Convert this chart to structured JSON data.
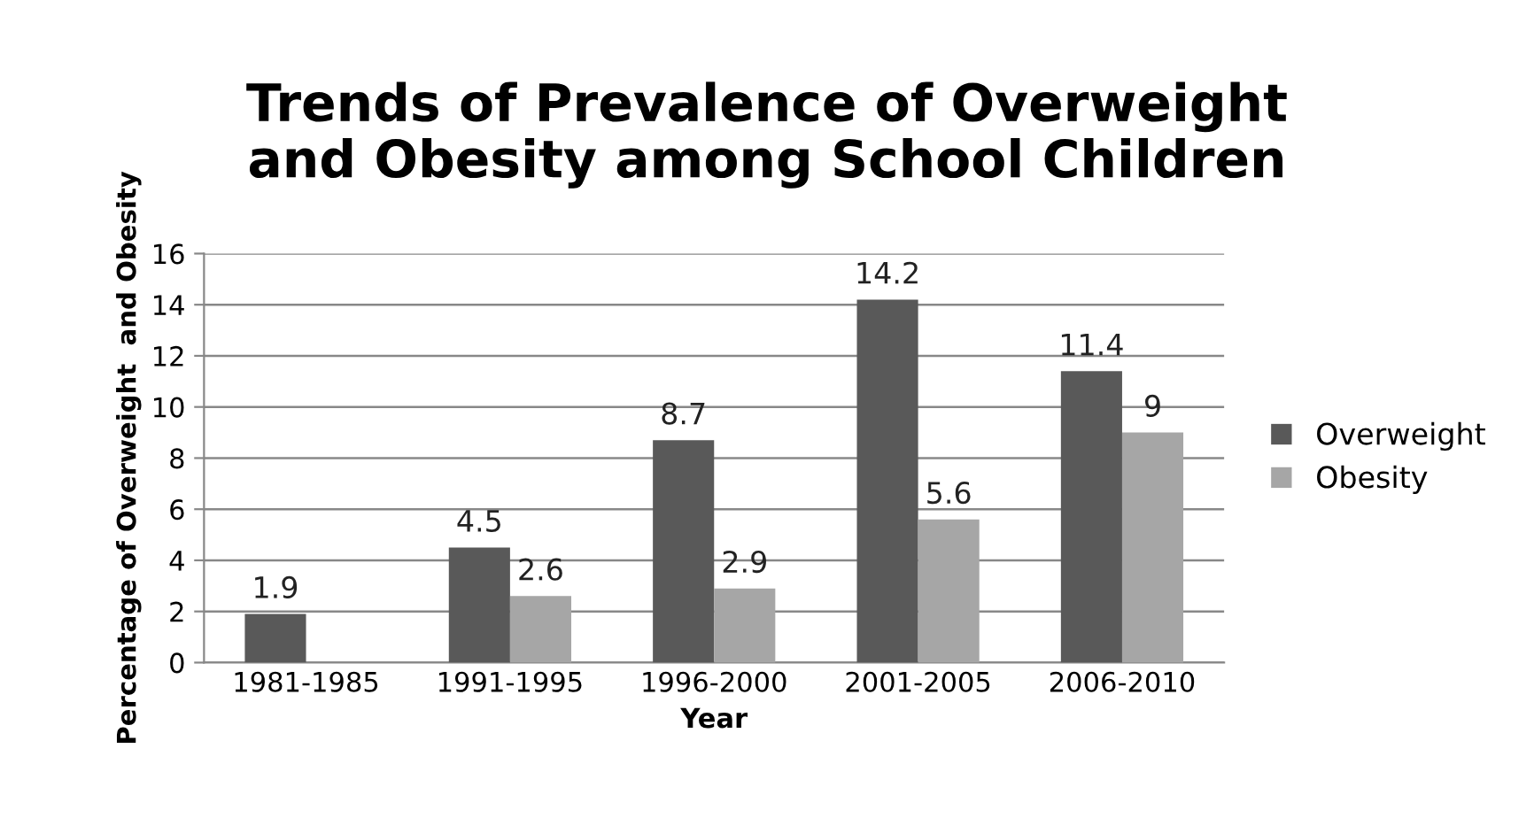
{
  "chart_data": {
    "type": "bar",
    "title": "Trends of Prevalence of Overweight\nand Obesity among School Children",
    "xlabel": "Year",
    "ylabel": "Percentage of Overweight  and Obesity",
    "categories": [
      "1981-1985",
      "1991-1995",
      "1996-2000",
      "2001-2005",
      "2006-2010"
    ],
    "series": [
      {
        "name": "Overweight",
        "color": "#595959",
        "values": [
          1.9,
          4.5,
          8.7,
          14.2,
          11.4
        ]
      },
      {
        "name": "Obesity",
        "color": "#a6a6a6",
        "values": [
          null,
          2.6,
          2.9,
          5.6,
          9
        ]
      }
    ],
    "ylim": [
      0,
      16
    ],
    "yticks": [
      0,
      2,
      4,
      6,
      8,
      10,
      12,
      14,
      16
    ],
    "grid": "y",
    "legend": "right",
    "data_labels": true
  }
}
